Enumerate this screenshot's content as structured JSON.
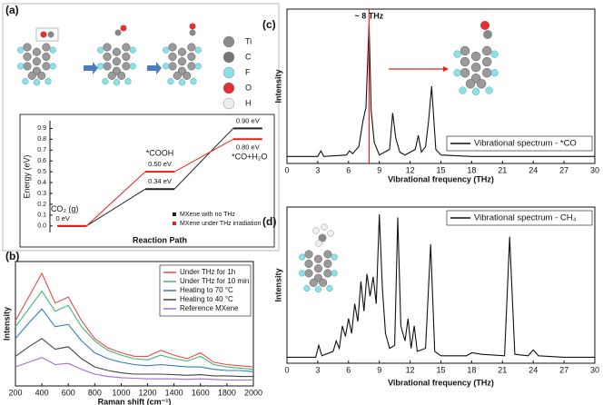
{
  "chart_data": [
    {
      "type": "step",
      "label": "(a)",
      "atom_legend": [
        "Ti",
        "C",
        "F",
        "O",
        "H"
      ],
      "xlabel": "Reaction Path",
      "ylabel": "Energy (eV)",
      "categories": [
        "CO₂ (g)",
        "*COOH",
        "*CO+H₂O"
      ],
      "ylim": [
        -0.06,
        0.97
      ],
      "yticks": [
        {
          "value": 0,
          "label": "0.0"
        },
        0.1,
        0.2,
        0.3,
        0.4,
        0.5,
        0.6,
        0.7,
        0.8,
        0.9
      ],
      "legend": "lower right",
      "series": [
        {
          "name": "MXene with no THz",
          "color": "#222222",
          "values": [
            0,
            0.34,
            0.9
          ],
          "value_labels": [
            "0 eV",
            "0.34 eV",
            "0.90 eV"
          ]
        },
        {
          "name": "MXene under THz irradiation",
          "color": "#e8201a",
          "values": [
            0,
            0.5,
            0.8
          ],
          "value_labels": [
            null,
            "0.50 eV",
            "0.80 eV"
          ]
        }
      ]
    },
    {
      "type": "line",
      "label": "(b)",
      "xlabel": "Raman shift (cm⁻¹)",
      "ylabel": "Intensity",
      "x": [
        200,
        300,
        400,
        500,
        600,
        700,
        800,
        900,
        1000,
        1100,
        1200,
        1300,
        1400,
        1500,
        1600,
        1700,
        1800,
        1900,
        2000
      ],
      "xlim": [
        200,
        2000
      ],
      "xticks": [
        200,
        400,
        600,
        800,
        1000,
        1200,
        1400,
        1600,
        1800,
        2000
      ],
      "ylim": [
        0,
        10.5
      ],
      "legend": "upper right",
      "series": [
        {
          "name": "Under THz for 1h",
          "color": "#f0474a",
          "values": [
            5.5,
            7.5,
            9.5,
            7,
            7.5,
            5.5,
            4,
            3.2,
            2.8,
            2.5,
            2.5,
            3,
            2.6,
            2.3,
            2.8,
            2,
            1.8,
            1.7,
            1.6
          ]
        },
        {
          "name": "Under THz for 10 min",
          "color": "#3cb878",
          "values": [
            5,
            6.5,
            8,
            6.3,
            6.8,
            5,
            3.8,
            3,
            2.6,
            2.3,
            2.2,
            2.6,
            2.3,
            2.1,
            2.5,
            1.8,
            1.6,
            1.5,
            1.4
          ]
        },
        {
          "name": "Heating to 70 °C",
          "color": "#2e7bc4",
          "values": [
            4,
            5.3,
            6.5,
            5,
            5.2,
            3.8,
            2.8,
            2.3,
            2,
            1.8,
            1.7,
            1.8,
            1.7,
            1.6,
            1.6,
            1.4,
            1.3,
            1.3,
            1.2
          ]
        },
        {
          "name": "Heating to 40 °C",
          "color": "#444444",
          "values": [
            2.5,
            3.3,
            4,
            3.1,
            3.3,
            2.3,
            1.6,
            1.3,
            1.1,
            1,
            1,
            1,
            0.95,
            0.9,
            0.95,
            0.85,
            0.85,
            0.8,
            0.8
          ]
        },
        {
          "name": "Reference MXene",
          "color": "#9b6fd6",
          "values": [
            1.6,
            2,
            2.4,
            1.8,
            1.9,
            1.4,
            1,
            0.8,
            0.7,
            0.65,
            0.6,
            0.6,
            0.6,
            0.55,
            0.6,
            0.55,
            0.5,
            0.5,
            0.5
          ]
        }
      ]
    },
    {
      "type": "line",
      "label": "(c)",
      "xlabel": "Vibrational frequency (THz)",
      "ylabel": "Intensity",
      "annotation": "~ 8 THz",
      "marker_x": 8,
      "marker_color": "#e8201a",
      "legend": "lower right",
      "x": [
        0,
        3,
        3.3,
        3.6,
        5.8,
        6.1,
        6.4,
        7,
        7.4,
        7.7,
        8,
        8.2,
        8.5,
        9,
        10,
        10.3,
        10.6,
        11,
        11.5,
        12,
        12.5,
        12.8,
        13.1,
        13.5,
        13.8,
        14.1,
        14.5,
        15,
        18,
        21,
        24,
        27,
        30
      ],
      "xlim": [
        0,
        30
      ],
      "xticks": [
        0,
        3,
        6,
        9,
        12,
        15,
        18,
        21,
        24,
        27,
        30
      ],
      "ylim": [
        0,
        110
      ],
      "series": [
        {
          "name": "Vibrational spectrum - *CO",
          "color": "#111111",
          "values": [
            5,
            5,
            9,
            5,
            6,
            9,
            7,
            12,
            30,
            40,
            100,
            38,
            15,
            6,
            10,
            36,
            18,
            8,
            6,
            8,
            10,
            20,
            8,
            12,
            30,
            55,
            10,
            6,
            5,
            5,
            5,
            5,
            5
          ]
        }
      ]
    },
    {
      "type": "line",
      "label": "(d)",
      "xlabel": "Vibrational frequency (THz)",
      "ylabel": "Intensity",
      "legend": "upper right",
      "x": [
        0,
        2.8,
        3.1,
        3.4,
        4.5,
        4.8,
        5.1,
        5.4,
        5.7,
        6,
        6.3,
        6.6,
        6.9,
        7.2,
        7.5,
        7.8,
        8.1,
        8.4,
        8.7,
        9,
        9.3,
        9.6,
        10,
        10.5,
        10.8,
        11.1,
        11.5,
        11.8,
        12.1,
        12.4,
        12.7,
        13.5,
        14,
        14.4,
        15,
        17.5,
        18,
        19,
        21.2,
        21.7,
        22.2,
        23.5,
        24,
        24.5,
        27,
        30
      ],
      "xlim": [
        0,
        30
      ],
      "xticks": [
        0,
        3,
        6,
        9,
        12,
        15,
        18,
        21,
        24,
        27,
        30
      ],
      "ylim": [
        0,
        105
      ],
      "series": [
        {
          "name": "Vibrational spectrum - CH₄",
          "color": "#111111",
          "values": [
            4,
            4,
            12,
            5,
            8,
            15,
            10,
            25,
            18,
            30,
            20,
            40,
            28,
            55,
            35,
            60,
            45,
            58,
            40,
            100,
            50,
            20,
            10,
            12,
            98,
            25,
            15,
            30,
            10,
            25,
            8,
            10,
            80,
            8,
            5,
            5,
            7,
            6,
            5,
            85,
            6,
            5,
            9,
            5,
            4,
            4
          ]
        }
      ]
    }
  ]
}
